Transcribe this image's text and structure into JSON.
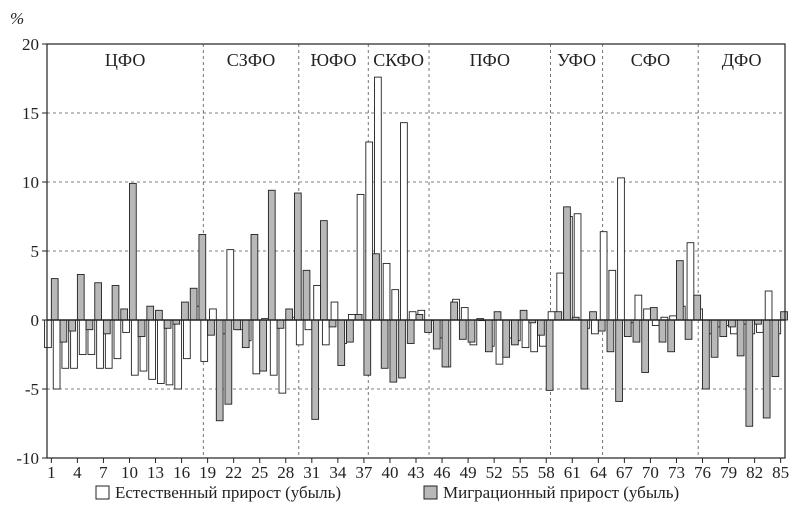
{
  "chart_data": {
    "type": "bar",
    "ylabel": "%",
    "ylim": [
      -10,
      20
    ],
    "yticks": [
      "-10",
      "-5",
      "0",
      "5",
      "10",
      "15",
      "20"
    ],
    "x": [
      1,
      2,
      3,
      4,
      5,
      6,
      7,
      8,
      9,
      10,
      11,
      12,
      13,
      14,
      15,
      16,
      17,
      18,
      19,
      20,
      21,
      22,
      23,
      24,
      25,
      26,
      27,
      28,
      29,
      30,
      31,
      32,
      33,
      34,
      35,
      36,
      37,
      38,
      39,
      40,
      41,
      42,
      43,
      44,
      45,
      46,
      47,
      48,
      49,
      50,
      51,
      52,
      53,
      54,
      55,
      56,
      57,
      58,
      59,
      60,
      61,
      62,
      63,
      64,
      65,
      66,
      67,
      68,
      69,
      70,
      71,
      72,
      73,
      74,
      75,
      76,
      77,
      78,
      79,
      80,
      81,
      82,
      83,
      84,
      85
    ],
    "xticks": [
      "1",
      "4",
      "7",
      "10",
      "13",
      "16",
      "19",
      "22",
      "25",
      "28",
      "31",
      "34",
      "37",
      "40",
      "43",
      "46",
      "49",
      "52",
      "55",
      "58",
      "61",
      "64",
      "67",
      "70",
      "73",
      "76",
      "79",
      "82",
      "85"
    ],
    "districts": [
      {
        "name": "ЦФО",
        "range": [
          1,
          18
        ]
      },
      {
        "name": "СЗФО",
        "range": [
          19,
          29
        ]
      },
      {
        "name": "ЮФО",
        "range": [
          30,
          37
        ]
      },
      {
        "name": "СКФО",
        "range": [
          38,
          44
        ]
      },
      {
        "name": "ПФО",
        "range": [
          45,
          58
        ]
      },
      {
        "name": "УФО",
        "range": [
          59,
          64
        ]
      },
      {
        "name": "СФО",
        "range": [
          65,
          75
        ]
      },
      {
        "name": "ДФО",
        "range": [
          76,
          85
        ]
      }
    ],
    "series": [
      {
        "name": "Естественный прирост (убыль)",
        "values": [
          -2.0,
          -5.0,
          -3.5,
          -3.5,
          -2.5,
          -2.5,
          -3.5,
          -3.5,
          -2.8,
          -0.9,
          -4.0,
          -3.7,
          -4.3,
          -4.6,
          -4.7,
          -5.0,
          -2.8,
          1.0,
          -3.0,
          0.8,
          -1.0,
          5.1,
          -0.7,
          -1.5,
          -3.9,
          0.1,
          -4.0,
          -5.3,
          0.2,
          -1.8,
          -0.7,
          2.5,
          -1.8,
          1.3,
          -1.7,
          0.4,
          9.1,
          12.9,
          17.6,
          4.1,
          2.2,
          14.3,
          0.6,
          0.7,
          0.0,
          -1.3,
          -3.4,
          1.5,
          0.9,
          -1.8,
          0.0,
          -1.9,
          -3.2,
          -1.3,
          -1.5,
          -2.0,
          -2.3,
          -1.9,
          0.6,
          3.4,
          7.5,
          7.7,
          -0.6,
          -1.0,
          6.4,
          3.6,
          10.3,
          -0.2,
          1.8,
          0.8,
          -0.4,
          0.2,
          0.3,
          1.0,
          5.6,
          0.8,
          -1.0,
          -0.5,
          -0.4,
          -1.0,
          -0.3,
          -1.0,
          -0.9,
          2.1,
          -1.0
        ],
        "color": "#ffffff"
      },
      {
        "name": "Миграционный прирост (убыль)",
        "values": [
          3.0,
          -1.6,
          -0.8,
          3.3,
          -0.7,
          2.7,
          -1.0,
          2.5,
          0.8,
          9.9,
          -1.2,
          1.0,
          0.7,
          -0.6,
          -0.3,
          1.3,
          2.3,
          6.2,
          -1.1,
          -7.3,
          -6.1,
          -0.7,
          -2.0,
          6.2,
          -3.7,
          9.4,
          -0.6,
          0.8,
          9.2,
          3.6,
          -7.2,
          7.2,
          -0.5,
          -3.3,
          -1.6,
          0.4,
          -4.0,
          4.8,
          -3.5,
          -4.5,
          -4.2,
          -1.7,
          0.4,
          -0.9,
          -2.1,
          -3.4,
          1.3,
          -1.4,
          -1.6,
          0.1,
          -2.3,
          0.6,
          -2.7,
          -1.8,
          0.7,
          -0.2,
          -1.1,
          -5.1,
          0.6,
          8.2,
          0.2,
          -5.0,
          0.6,
          -0.8,
          -2.3,
          -5.9,
          -1.2,
          -1.6,
          -3.8,
          0.9,
          -1.6,
          -2.3,
          4.3,
          -1.4,
          1.8,
          -5.0,
          -2.7,
          -1.2,
          -0.5,
          -2.6,
          -7.7,
          -0.3,
          -7.1,
          -4.1,
          0.6
        ],
        "color": "#b8b8b8"
      }
    ]
  }
}
